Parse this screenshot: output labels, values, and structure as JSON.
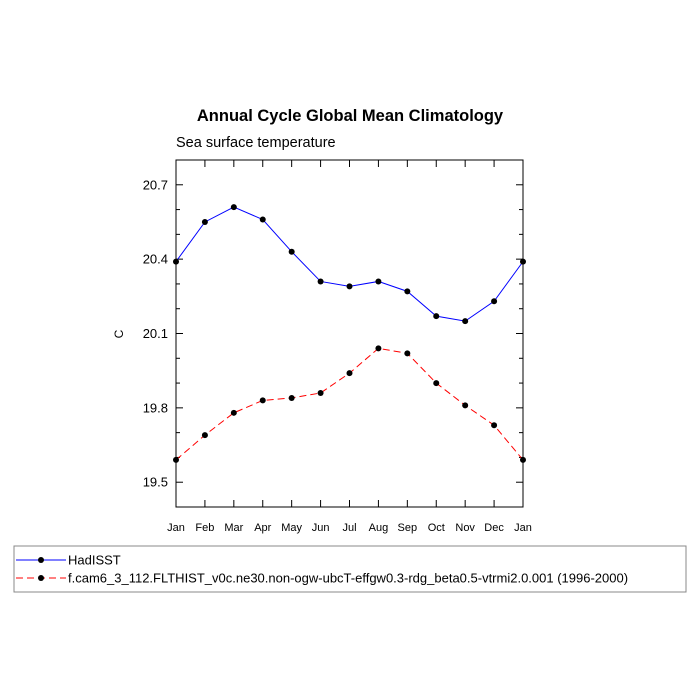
{
  "chart_data": {
    "type": "line",
    "title": "Annual Cycle Global Mean Climatology",
    "subtitle": "Sea surface temperature",
    "xlabel": "",
    "ylabel": "C",
    "categories": [
      "Jan",
      "Feb",
      "Mar",
      "Apr",
      "May",
      "Jun",
      "Jul",
      "Aug",
      "Sep",
      "Oct",
      "Nov",
      "Dec",
      "Jan"
    ],
    "ylim": [
      19.4,
      20.8
    ],
    "yticks": [
      "20.7",
      "20.4",
      "20.1",
      "19.8",
      "19.5"
    ],
    "ytick_values": [
      20.7,
      20.4,
      20.1,
      19.8,
      19.5
    ],
    "grid": false,
    "legend_position": "bottom",
    "series": [
      {
        "name": "HadISST",
        "color": "#0000ff",
        "dash": "solid",
        "values": [
          20.39,
          20.55,
          20.61,
          20.56,
          20.43,
          20.31,
          20.29,
          20.31,
          20.27,
          20.17,
          20.15,
          20.23,
          20.39
        ]
      },
      {
        "name": "f.cam6_3_112.FLTHIST_v0c.ne30.non-ogw-ubcT-effgw0.3-rdg_beta0.5-vtrmi2.0.001 (1996-2000)",
        "color": "#ff0000",
        "dash": "dashed",
        "values": [
          19.59,
          19.69,
          19.78,
          19.83,
          19.84,
          19.86,
          19.94,
          20.04,
          20.02,
          19.9,
          19.81,
          19.73,
          19.59
        ]
      }
    ]
  }
}
